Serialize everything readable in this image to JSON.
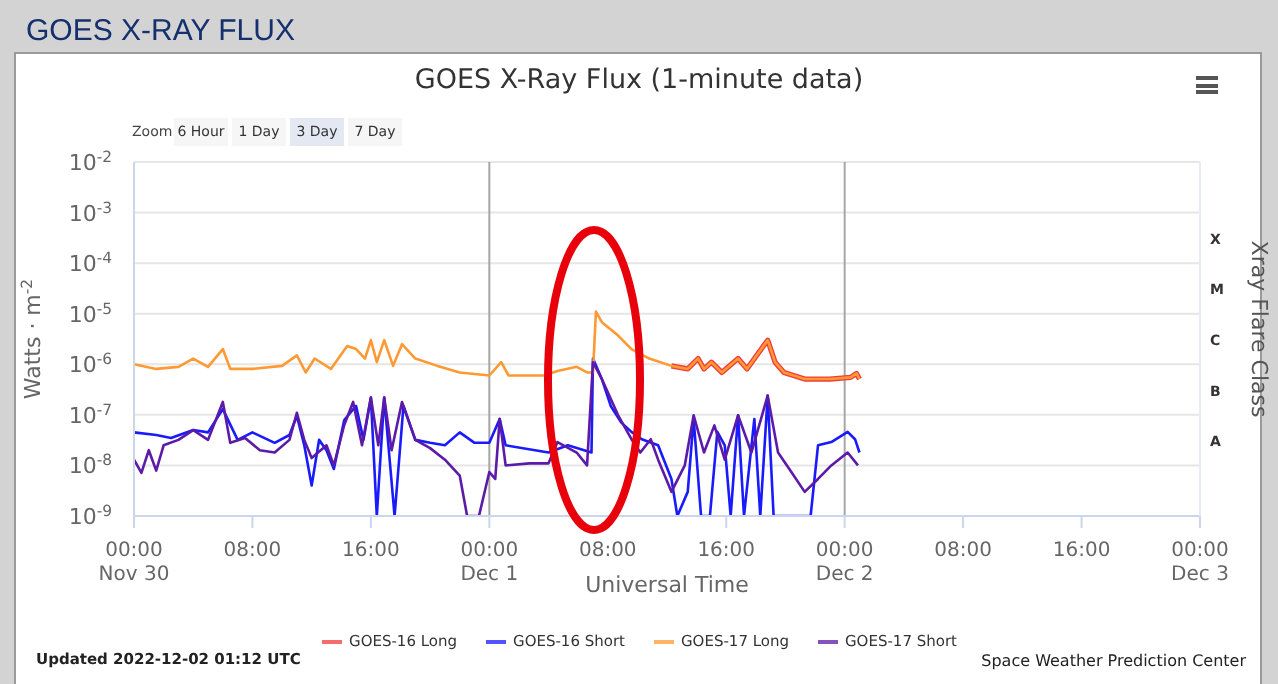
{
  "chart_data": {
    "type": "line",
    "title": "GOES X-Ray Flux (1-minute data)",
    "xlabel": "Universal Time",
    "ylabel": "Watts · m$^{-2}$",
    "y2label": "Xray Flare Class",
    "annotations": [
      "GOES X-RAY FLUX",
      "Zoom",
      "6 Hour",
      "1 Day",
      "3 Day",
      "7 Day",
      "Updated 2022-12-02 01:12 UTC",
      "Space Weather Prediction Center",
      "X",
      "M",
      "C",
      "B",
      "A"
    ],
    "xlim": [
      "2022-11-30T00:00",
      "2022-12-03T00:00"
    ],
    "xticks": [
      {
        "value": "2022-11-30T00:00",
        "label": "00:00\nNov 30"
      },
      {
        "value": "2022-11-30T08:00",
        "label": "08:00"
      },
      {
        "value": "2022-11-30T16:00",
        "label": "16:00"
      },
      {
        "value": "2022-12-01T00:00",
        "label": "00:00\nDec 1"
      },
      {
        "value": "2022-12-01T08:00",
        "label": "08:00"
      },
      {
        "value": "2022-12-01T16:00",
        "label": "16:00"
      },
      {
        "value": "2022-12-02T00:00",
        "label": "00:00\nDec 2"
      },
      {
        "value": "2022-12-02T08:00",
        "label": "08:00"
      },
      {
        "value": "2022-12-02T16:00",
        "label": "16:00"
      },
      {
        "value": "2022-12-03T00:00",
        "label": "00:00\nDec 3"
      }
    ],
    "ylim": [
      1e-09,
      0.01
    ],
    "yticks": [
      {
        "value": 1e-09,
        "label": "10$^{-9}$"
      },
      {
        "value": 1e-08,
        "label": "10$^{-8}$"
      },
      {
        "value": 1e-07,
        "label": "10$^{-7}$"
      },
      {
        "value": 1e-06,
        "label": "10$^{-6}$"
      },
      {
        "value": 1e-05,
        "label": "10$^{-5}$"
      },
      {
        "value": 0.0001,
        "label": "10$^{-4}$"
      },
      {
        "value": 0.001,
        "label": "10$^{-3}$"
      },
      {
        "value": 0.01,
        "label": "10$^{-2}$"
      }
    ],
    "log": "y",
    "grid": "y",
    "legend": "bottom",
    "marker": "none",
    "ref_lines": [
      {
        "axis": "x",
        "value": "2022-12-01T00:00",
        "color": "#a6a6a6"
      },
      {
        "axis": "x",
        "value": "2022-12-02T00:00",
        "color": "#a6a6a6"
      }
    ],
    "series": [
      {
        "name": "GOES-16 Long",
        "color": "#f03c3c",
        "x": [
          "2022-12-01T12:18",
          "2022-12-01T13:24",
          "2022-12-01T14:06",
          "2022-12-01T14:30",
          "2022-12-01T15:00",
          "2022-12-01T15:42",
          "2022-12-01T16:48",
          "2022-12-01T17:24",
          "2022-12-01T18:48",
          "2022-12-01T19:18",
          "2022-12-01T19:54",
          "2022-12-01T21:18",
          "2022-12-01T23:00",
          "2022-12-02T00:24",
          "2022-12-02T00:48",
          "2022-12-02T01:00"
        ],
        "values": [
          9.3e-07,
          8.1e-07,
          1.3e-06,
          8.1e-07,
          1.1e-06,
          6.9e-07,
          1.3e-06,
          8.1e-07,
          3e-06,
          1.1e-06,
          6.9e-07,
          5.1e-07,
          5.1e-07,
          5.5e-07,
          6.6e-07,
          5.1e-07
        ]
      },
      {
        "name": "GOES-16 Short",
        "color": "#1a1aff",
        "x": [
          "2022-11-30T00:00",
          "2022-11-30T01:30",
          "2022-11-30T02:30",
          "2022-11-30T04:00",
          "2022-11-30T05:00",
          "2022-11-30T06:00",
          "2022-11-30T07:00",
          "2022-11-30T08:00",
          "2022-11-30T09:30",
          "2022-11-30T10:30",
          "2022-11-30T11:00",
          "2022-11-30T11:30",
          "2022-11-30T12:00",
          "2022-11-30T12:30",
          "2022-11-30T13:00",
          "2022-11-30T13:30",
          "2022-11-30T14:12",
          "2022-11-30T15:00",
          "2022-11-30T15:30",
          "2022-11-30T16:00",
          "2022-11-30T16:24",
          "2022-11-30T16:54",
          "2022-11-30T17:36",
          "2022-11-30T18:12",
          "2022-11-30T19:00",
          "2022-11-30T20:00",
          "2022-11-30T21:00",
          "2022-11-30T22:00",
          "2022-11-30T23:00",
          "2022-12-01T00:00",
          "2022-12-01T00:42",
          "2022-12-01T01:06",
          "2022-12-01T04:00",
          "2022-12-01T05:18",
          "2022-12-01T06:54",
          "2022-12-01T07:00",
          "2022-12-01T07:36",
          "2022-12-01T08:12",
          "2022-12-01T08:54",
          "2022-12-01T09:36",
          "2022-12-01T10:18",
          "2022-12-01T11:24",
          "2022-12-01T12:18",
          "2022-12-01T12:42",
          "2022-12-01T13:24",
          "2022-12-01T13:48",
          "2022-12-01T14:18",
          "2022-12-01T14:54",
          "2022-12-01T15:24",
          "2022-12-01T15:54",
          "2022-12-01T16:18",
          "2022-12-01T16:48",
          "2022-12-01T17:12",
          "2022-12-01T17:54",
          "2022-12-01T18:18",
          "2022-12-01T18:48",
          "2022-12-01T19:12",
          "2022-12-01T21:42",
          "2022-12-01T22:12",
          "2022-12-01T23:06",
          "2022-12-02T00:12",
          "2022-12-02T00:42",
          "2022-12-02T01:00"
        ],
        "values": [
          4.5e-08,
          4e-08,
          3.5e-08,
          5e-08,
          4.5e-08,
          1.3e-07,
          3.2e-08,
          4.5e-08,
          2.8e-08,
          4e-08,
          9.5e-08,
          2.5e-08,
          4e-09,
          3.2e-08,
          2e-08,
          8.5e-09,
          7.9e-08,
          1.5e-07,
          3.2e-08,
          2.2e-07,
          1e-09,
          2.2e-07,
          1e-09,
          1.5e-07,
          3.2e-08,
          2.8e-08,
          2.5e-08,
          4.5e-08,
          2.8e-08,
          2.8e-08,
          8.3e-08,
          2.5e-08,
          1.8e-08,
          2.5e-08,
          1.8e-08,
          1.3e-06,
          5.1e-07,
          1.5e-07,
          7.1e-08,
          4.6e-08,
          3.3e-08,
          2.5e-08,
          5.4e-09,
          1e-09,
          3e-09,
          8.3e-08,
          1e-09,
          1e-09,
          4.6e-08,
          2.5e-08,
          1e-09,
          9.8e-08,
          1e-09,
          8.3e-08,
          1e-09,
          2.4e-07,
          1e-09,
          1e-09,
          2.5e-08,
          2.9e-08,
          4.6e-08,
          3.3e-08,
          1.8e-08
        ]
      },
      {
        "name": "GOES-17 Long",
        "color": "#ff9933",
        "x": [
          "2022-11-30T00:00",
          "2022-11-30T01:30",
          "2022-11-30T03:00",
          "2022-11-30T04:00",
          "2022-11-30T05:00",
          "2022-11-30T06:00",
          "2022-11-30T06:30",
          "2022-11-30T08:00",
          "2022-11-30T10:00",
          "2022-11-30T11:00",
          "2022-11-30T11:36",
          "2022-11-30T12:12",
          "2022-11-30T13:18",
          "2022-11-30T14:24",
          "2022-11-30T15:00",
          "2022-11-30T15:36",
          "2022-11-30T16:00",
          "2022-11-30T16:24",
          "2022-11-30T16:54",
          "2022-11-30T17:30",
          "2022-11-30T18:06",
          "2022-11-30T19:00",
          "2022-11-30T20:30",
          "2022-11-30T22:00",
          "2022-12-01T00:00",
          "2022-12-01T00:48",
          "2022-12-01T01:18",
          "2022-12-01T03:42",
          "2022-12-01T04:36",
          "2022-12-01T05:54",
          "2022-12-01T06:36",
          "2022-12-01T07:00",
          "2022-12-01T07:12",
          "2022-12-01T07:36",
          "2022-12-01T08:42",
          "2022-12-01T09:36",
          "2022-12-01T10:48",
          "2022-12-01T12:18",
          "2022-12-01T13:24",
          "2022-12-01T14:06",
          "2022-12-01T14:30",
          "2022-12-01T15:00",
          "2022-12-01T15:42",
          "2022-12-01T16:48",
          "2022-12-01T17:24",
          "2022-12-01T18:48",
          "2022-12-01T19:18",
          "2022-12-01T19:54",
          "2022-12-01T21:18",
          "2022-12-01T23:00",
          "2022-12-02T00:24",
          "2022-12-02T00:48",
          "2022-12-02T01:00"
        ],
        "values": [
          1e-06,
          8.1e-07,
          8.9e-07,
          1.3e-06,
          8.9e-07,
          2e-06,
          8.1e-07,
          8.1e-07,
          9.3e-07,
          1.5e-06,
          6.9e-07,
          1.3e-06,
          8.1e-07,
          2.3e-06,
          2e-06,
          1.3e-06,
          3e-06,
          1.1e-06,
          3e-06,
          9.3e-07,
          2.5e-06,
          1.3e-06,
          9.3e-07,
          6.9e-07,
          6e-07,
          1.1e-06,
          6e-07,
          6e-07,
          7.4e-07,
          8.9e-07,
          6.9e-07,
          6.9e-07,
          1.1e-05,
          6.8e-06,
          3.7e-06,
          2e-06,
          1.3e-06,
          9.3e-07,
          8.1e-07,
          1.3e-06,
          8.1e-07,
          1.1e-06,
          6.9e-07,
          1.3e-06,
          8.1e-07,
          3e-06,
          1.1e-06,
          6.9e-07,
          5.1e-07,
          5.1e-07,
          5.5e-07,
          6.6e-07,
          5.1e-07
        ]
      },
      {
        "name": "GOES-17 Short",
        "color": "#5c1aa8",
        "x": [
          "2022-11-30T00:00",
          "2022-11-30T00:30",
          "2022-11-30T01:00",
          "2022-11-30T01:30",
          "2022-11-30T02:00",
          "2022-11-30T03:00",
          "2022-11-30T04:00",
          "2022-11-30T05:00",
          "2022-11-30T06:00",
          "2022-11-30T06:30",
          "2022-11-30T07:30",
          "2022-11-30T08:30",
          "2022-11-30T09:30",
          "2022-11-30T10:30",
          "2022-11-30T11:00",
          "2022-11-30T11:30",
          "2022-11-30T12:00",
          "2022-11-30T13:00",
          "2022-11-30T13:30",
          "2022-11-30T14:12",
          "2022-11-30T14:48",
          "2022-11-30T15:24",
          "2022-11-30T16:00",
          "2022-11-30T16:30",
          "2022-11-30T16:54",
          "2022-11-30T17:24",
          "2022-11-30T18:06",
          "2022-11-30T19:00",
          "2022-11-30T20:00",
          "2022-11-30T21:00",
          "2022-11-30T22:00",
          "2022-11-30T22:30",
          "2022-11-30T23:18",
          "2022-12-01T00:00",
          "2022-12-01T00:24",
          "2022-12-01T00:42",
          "2022-12-01T01:06",
          "2022-12-01T02:42",
          "2022-12-01T04:00",
          "2022-12-01T04:36",
          "2022-12-01T05:54",
          "2022-12-01T06:36",
          "2022-12-01T07:00",
          "2022-12-01T07:36",
          "2022-12-01T08:42",
          "2022-12-01T09:36",
          "2022-12-01T10:12",
          "2022-12-01T10:54",
          "2022-12-01T11:24",
          "2022-12-01T12:18",
          "2022-12-01T13:12",
          "2022-12-01T13:48",
          "2022-12-01T14:30",
          "2022-12-01T15:12",
          "2022-12-01T15:54",
          "2022-12-01T16:48",
          "2022-12-01T17:42",
          "2022-12-01T18:48",
          "2022-12-01T19:30",
          "2022-12-01T20:24",
          "2022-12-01T21:18",
          "2022-12-01T22:12",
          "2022-12-01T23:06",
          "2022-12-02T00:12",
          "2022-12-02T00:54"
        ],
        "values": [
          1.3e-08,
          7.1e-09,
          2e-08,
          7.9e-09,
          2.5e-08,
          3.2e-08,
          5e-08,
          3.2e-08,
          1.8e-07,
          2.8e-08,
          3.5e-08,
          2e-08,
          1.8e-08,
          3.2e-08,
          1.1e-07,
          3.2e-08,
          1.4e-08,
          2.5e-08,
          1e-08,
          6.3e-08,
          1.8e-07,
          2.5e-08,
          2.2e-07,
          2.5e-08,
          2.2e-07,
          2e-08,
          1.8e-07,
          3.2e-08,
          2.2e-08,
          1.3e-08,
          6.3e-09,
          1e-09,
          1e-09,
          7.4e-09,
          5.4e-09,
          8.3e-08,
          1e-08,
          1.1e-08,
          1.1e-08,
          2.9e-08,
          1.8e-08,
          1e-08,
          1.1e-06,
          5.1e-07,
          9.8e-08,
          3.3e-08,
          1.8e-08,
          3.3e-08,
          1.3e-08,
          3e-09,
          1e-08,
          9.8e-08,
          1.8e-08,
          6.2e-08,
          1.3e-08,
          9.8e-08,
          1.8e-08,
          2.4e-07,
          1.8e-08,
          7.4e-09,
          3e-09,
          5.4e-09,
          1e-08,
          1.8e-08,
          1e-08
        ]
      }
    ]
  }
}
